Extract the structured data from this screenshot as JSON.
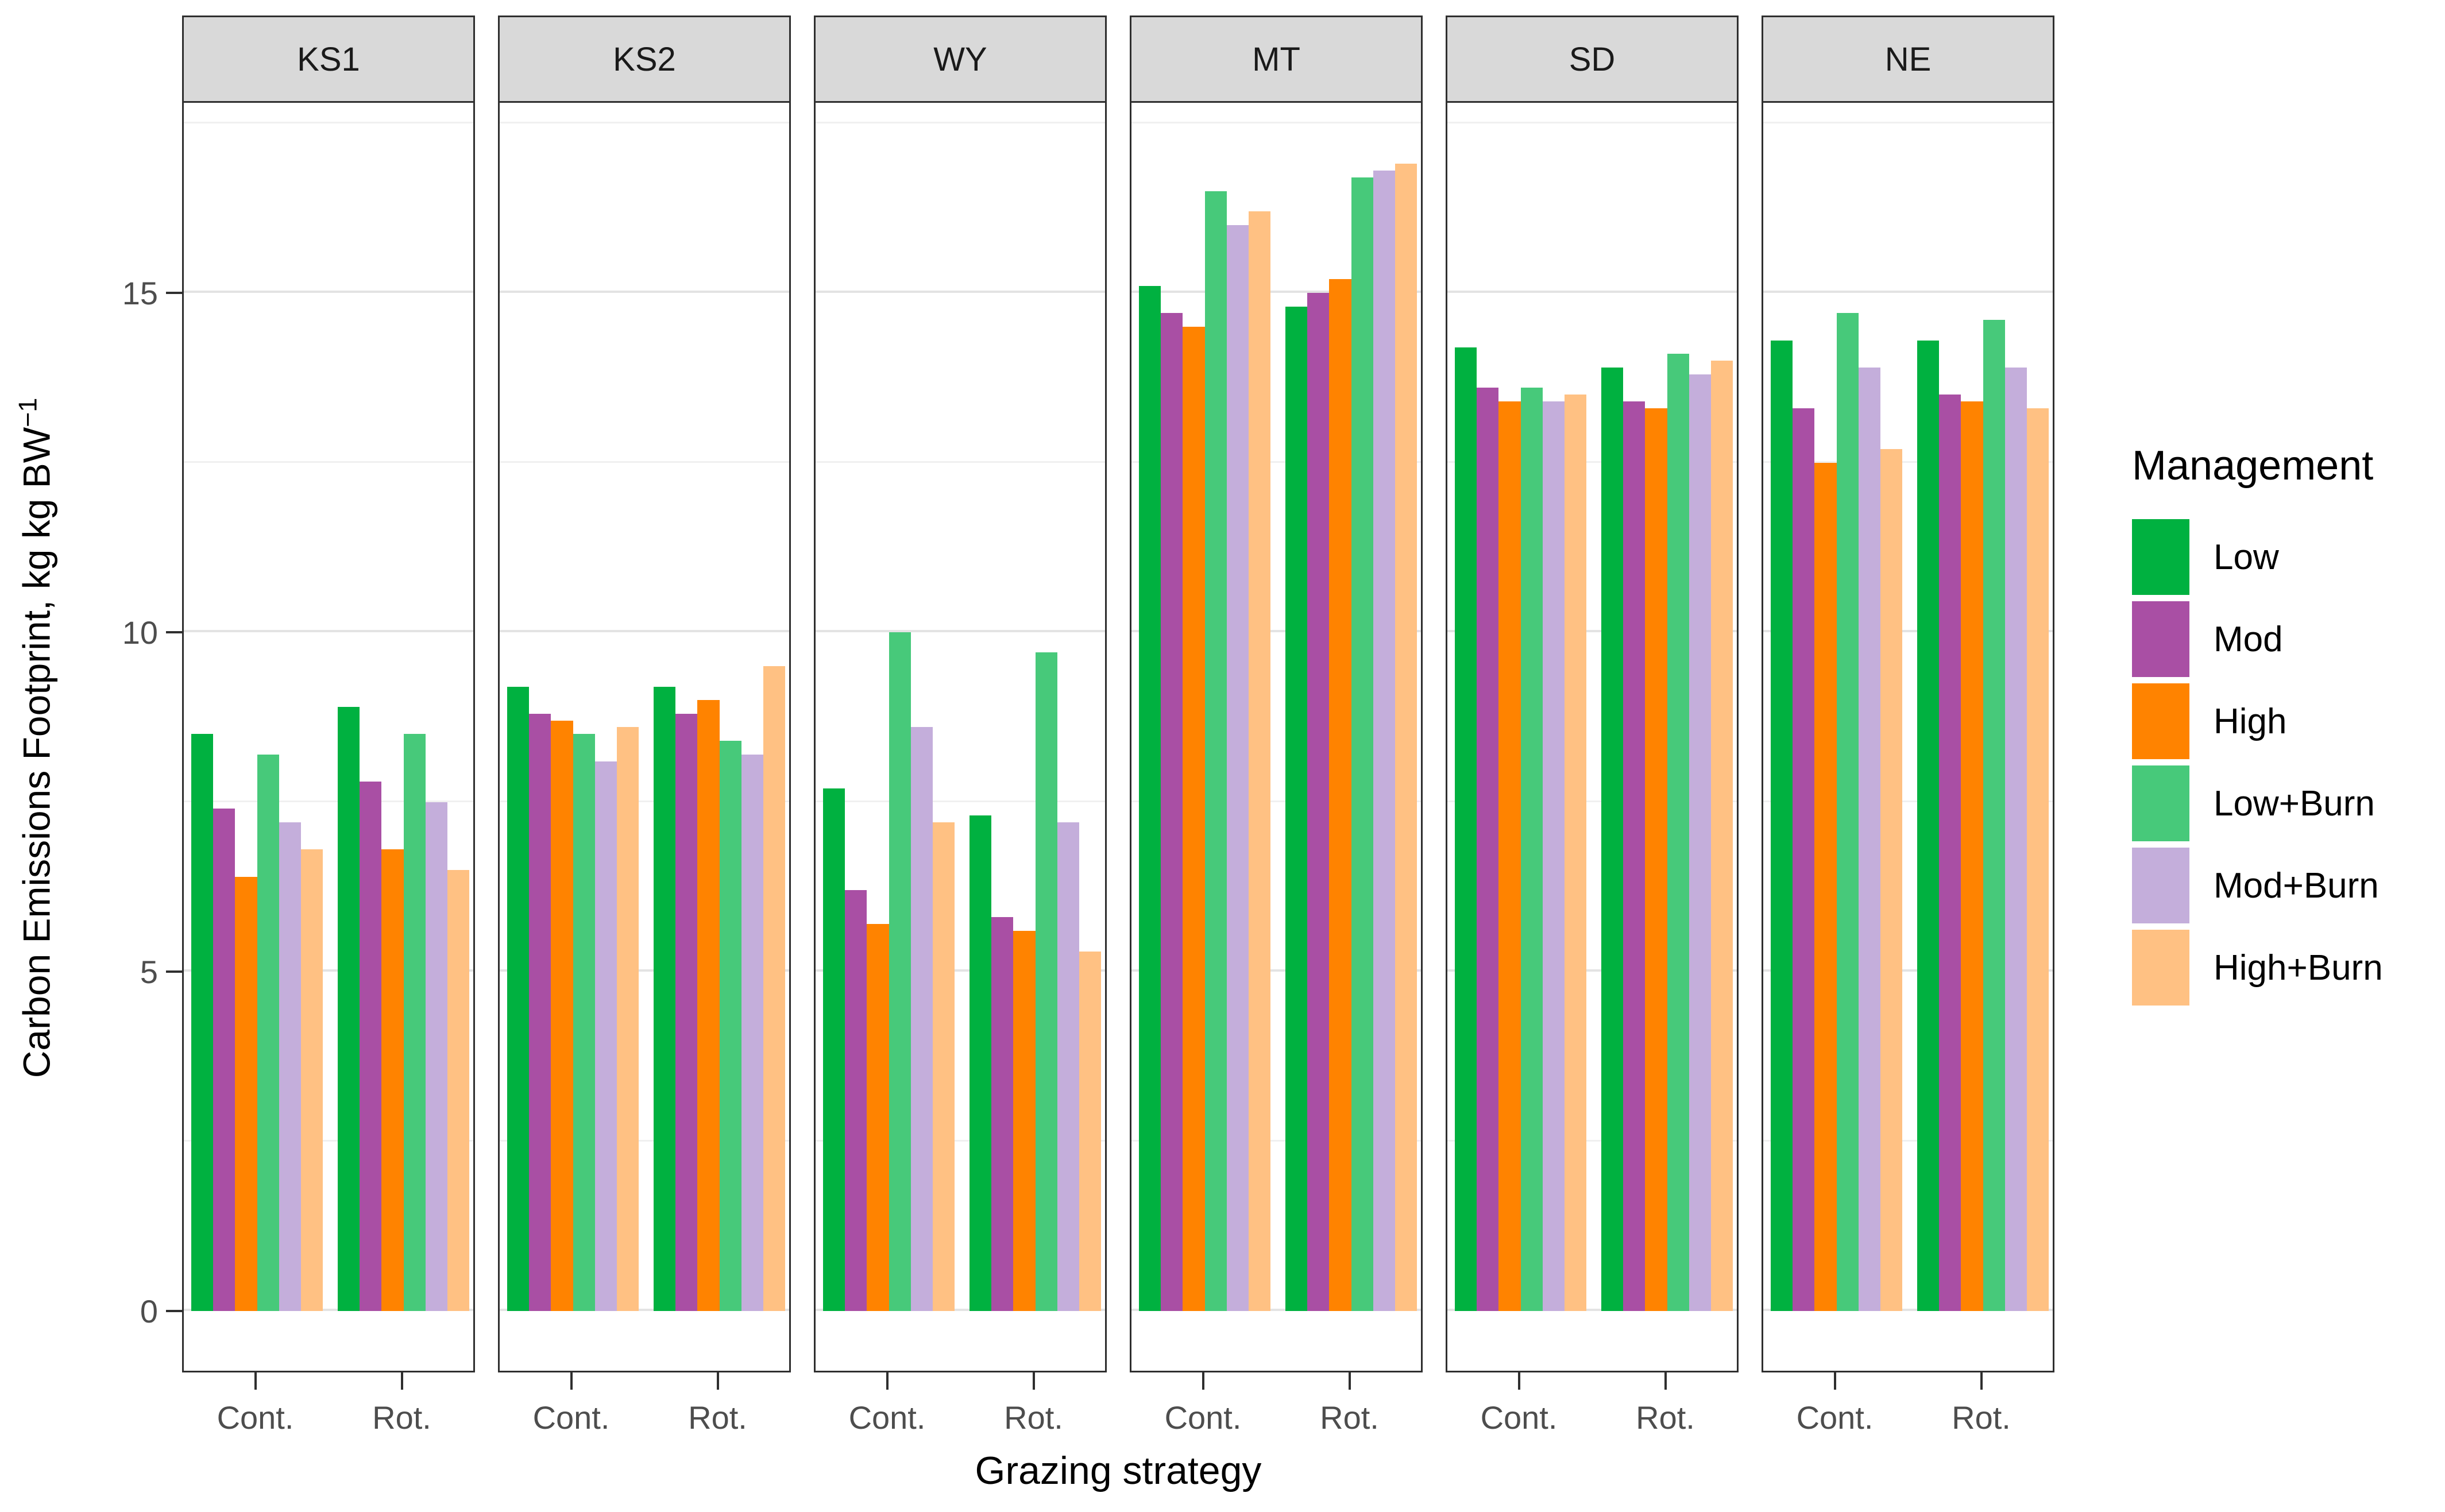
{
  "axes": {
    "y_label_main": "Carbon Emissions Footprint, kg kg BW",
    "y_label_sup": "−1",
    "x_label": "Grazing strategy",
    "y_ticks": [
      "0",
      "5",
      "10",
      "15"
    ],
    "x_tick_labels": [
      "Cont.",
      "Rot."
    ]
  },
  "legend": {
    "title": "Management",
    "entries": [
      {
        "label": "Low",
        "color": "#00B140"
      },
      {
        "label": "Mod",
        "color": "#A94FA4"
      },
      {
        "label": "High",
        "color": "#FF8300"
      },
      {
        "label": "Low+Burn",
        "color": "#47C97A"
      },
      {
        "label": "Mod+Burn",
        "color": "#C4AEDB"
      },
      {
        "label": "High+Burn",
        "color": "#FFC183"
      }
    ]
  },
  "colors": {
    "strip_background": "#D9D9D9",
    "panel_border": "#2F2F2F",
    "major_gridline": "#E3E3E3",
    "minor_gridline": "#F0F0F0",
    "tick_text": "#4D4D4D"
  },
  "chart_data": {
    "type": "bar",
    "title": "",
    "xlabel": "Grazing strategy",
    "ylabel": "Carbon Emissions Footprint, kg kg BW^-1",
    "facets": [
      "KS1",
      "KS2",
      "WY",
      "MT",
      "SD",
      "NE"
    ],
    "categories": [
      "Cont.",
      "Rot."
    ],
    "series_names": [
      "Low",
      "Mod",
      "High",
      "Low+Burn",
      "Mod+Burn",
      "High+Burn"
    ],
    "series_colors": [
      "#00B140",
      "#A94FA4",
      "#FF8300",
      "#47C97A",
      "#C4AEDB",
      "#FFC183"
    ],
    "ylim": [
      0,
      17.8
    ],
    "grid": {
      "major": [
        0,
        5,
        10,
        15
      ],
      "minor": [
        2.5,
        7.5,
        12.5,
        17.5
      ]
    },
    "legend_position": "right",
    "values": {
      "KS1": {
        "Cont.": [
          8.5,
          7.4,
          6.4,
          8.2,
          7.2,
          6.8
        ],
        "Rot.": [
          8.9,
          7.8,
          6.8,
          8.5,
          7.5,
          6.5
        ]
      },
      "KS2": {
        "Cont.": [
          9.2,
          8.8,
          8.7,
          8.5,
          8.1,
          8.6
        ],
        "Rot.": [
          9.2,
          8.8,
          9.0,
          8.4,
          8.2,
          9.5
        ]
      },
      "WY": {
        "Cont.": [
          7.7,
          6.2,
          5.7,
          10.0,
          8.6,
          7.2
        ],
        "Rot.": [
          7.3,
          5.8,
          5.6,
          9.7,
          7.2,
          5.3
        ]
      },
      "MT": {
        "Cont.": [
          15.1,
          14.7,
          14.5,
          16.5,
          16.0,
          16.2
        ],
        "Rot.": [
          14.8,
          15.0,
          15.2,
          16.7,
          16.8,
          16.9
        ]
      },
      "SD": {
        "Cont.": [
          14.2,
          13.6,
          13.4,
          13.6,
          13.4,
          13.5
        ],
        "Rot.": [
          13.9,
          13.4,
          13.3,
          14.1,
          13.8,
          14.0
        ]
      },
      "NE": {
        "Cont.": [
          14.3,
          13.3,
          12.5,
          14.7,
          13.9,
          12.7
        ],
        "Rot.": [
          14.3,
          13.5,
          13.4,
          14.6,
          13.9,
          13.3
        ]
      }
    }
  }
}
